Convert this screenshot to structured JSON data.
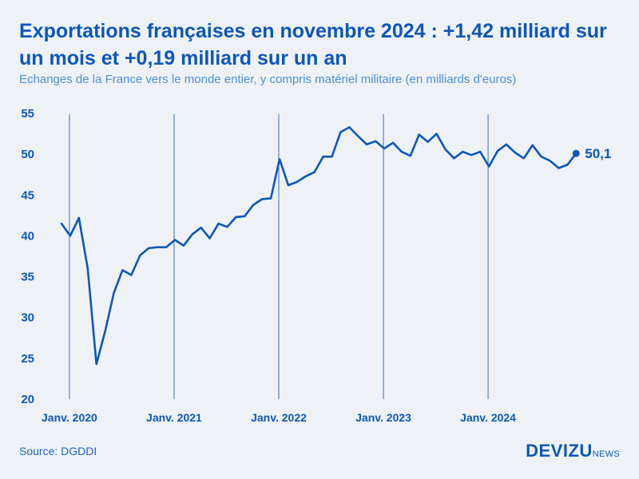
{
  "header": {
    "title": "Exportations françaises en novembre 2024 : +1,42 milliard sur un mois et +0,19 milliard sur un an",
    "subtitle": "Echanges de la France vers le monde entier, y compris matériel militaire (en milliards d'euros)"
  },
  "footer": {
    "source": "Source: DGDDI",
    "logo_main": "DEVIZU",
    "logo_sub": "NEWS"
  },
  "colors": {
    "line": "#0d57b8",
    "axis_text": "#0d57b8",
    "year_divider": "#2f6fc4",
    "background": "#eef2f6"
  },
  "chart_data": {
    "type": "line",
    "title": "Exportations françaises en novembre 2024 : +1,42 milliard sur un mois et +0,19 milliard sur un an",
    "subtitle": "Echanges de la France vers le monde entier, y compris matériel militaire (en milliards d'euros)",
    "xlabel": "",
    "ylabel": "",
    "ylim": [
      20,
      55
    ],
    "yticks": [
      20,
      25,
      30,
      35,
      40,
      45,
      50,
      55
    ],
    "ytick_labels": [
      "20",
      "25",
      "30",
      "35",
      "40",
      "45",
      "50",
      "55"
    ],
    "x_start": "2019-12",
    "year_markers": [
      {
        "index": 1,
        "label": "Janv. 2020"
      },
      {
        "index": 13,
        "label": "Janv. 2021"
      },
      {
        "index": 25,
        "label": "Janv. 2022"
      },
      {
        "index": 37,
        "label": "Janv. 2023"
      },
      {
        "index": 49,
        "label": "Janv. 2024"
      }
    ],
    "grid": false,
    "series": [
      {
        "name": "Exportations",
        "values": [
          41.5,
          40.0,
          42.2,
          36.0,
          24.3,
          28.3,
          33.0,
          35.8,
          35.2,
          37.6,
          38.5,
          38.6,
          38.6,
          39.5,
          38.8,
          40.2,
          41.0,
          39.7,
          41.5,
          41.1,
          42.3,
          42.4,
          43.8,
          44.5,
          44.6,
          49.4,
          46.2,
          46.6,
          47.3,
          47.8,
          49.7,
          49.7,
          52.7,
          53.3,
          52.2,
          51.2,
          51.6,
          50.7,
          51.4,
          50.3,
          49.8,
          52.4,
          51.5,
          52.5,
          50.6,
          49.5,
          50.3,
          49.9,
          50.3,
          48.5,
          50.4,
          51.2,
          50.2,
          49.5,
          51.1,
          49.7,
          49.2,
          48.3,
          48.7,
          50.1
        ],
        "end_label": "50,1"
      }
    ]
  }
}
